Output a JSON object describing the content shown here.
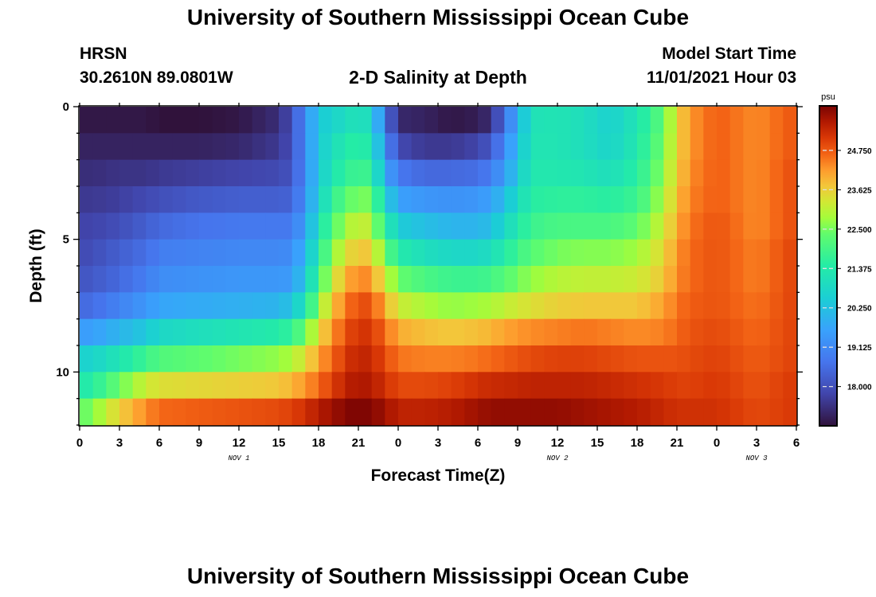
{
  "header": {
    "title": "University of Southern Mississippi Ocean Cube",
    "station": "HRSN",
    "coordinates": "30.2610N  89.0801W",
    "subtitle": "2-D Salinity at Depth",
    "model_start_label": "Model Start Time",
    "model_start_value": "11/01/2021 Hour 03"
  },
  "footer": {
    "title": "University of Southern Mississippi Ocean Cube"
  },
  "chart_data": {
    "type": "heatmap",
    "title": "2-D Salinity at Depth",
    "xlabel": "Forecast Time(Z)",
    "ylabel": "Depth (ft)",
    "xlim": [
      0,
      54
    ],
    "ylim": [
      0,
      12
    ],
    "x_tick_values": [
      0,
      3,
      6,
      9,
      12,
      15,
      18,
      21,
      24,
      27,
      30,
      33,
      36,
      39,
      42,
      45,
      48,
      51,
      54
    ],
    "x_tick_labels": [
      "0",
      "3",
      "6",
      "9",
      "12",
      "15",
      "18",
      "21",
      "0",
      "3",
      "6",
      "9",
      "12",
      "15",
      "18",
      "21",
      "0",
      "3",
      "6"
    ],
    "y_tick_values": [
      0,
      5,
      10
    ],
    "y_tick_labels": [
      "0",
      "5",
      "10"
    ],
    "date_labels": [
      {
        "label": "NOV 1",
        "hour": 12
      },
      {
        "label": "NOV 2",
        "hour": 36
      },
      {
        "label": "NOV 3",
        "hour": 51
      }
    ],
    "colorbar": {
      "unit": "psu",
      "min": 16.9,
      "max": 26.0,
      "tick_values": [
        18.0,
        19.125,
        20.25,
        21.375,
        22.5,
        23.625,
        24.75
      ],
      "tick_labels": [
        "18.000",
        "19.125",
        "20.250",
        "21.375",
        "22.500",
        "23.625",
        "24.750"
      ]
    },
    "depths": [
      0.5,
      1.5,
      2.5,
      3.5,
      4.5,
      5.5,
      6.5,
      7.5,
      8.5,
      9.5,
      10.5,
      11.5
    ],
    "hours": [
      0,
      1,
      3,
      5,
      6,
      9,
      12,
      15,
      16,
      17,
      18,
      19,
      20,
      21,
      22,
      23,
      24,
      26,
      28,
      30,
      31,
      32,
      34,
      36,
      38,
      40,
      42,
      44,
      45,
      46,
      48,
      51,
      54
    ],
    "salinity": [
      [
        17.0,
        17.0,
        17.0,
        17.0,
        16.9,
        16.9,
        17.0,
        17.4,
        18.0,
        19.2,
        20.4,
        20.7,
        20.9,
        21.2,
        20.8,
        18.8,
        17.3,
        17.2,
        17.0,
        17.1,
        17.4,
        18.6,
        21.1,
        21.2,
        21.0,
        20.6,
        21.2,
        22.3,
        23.5,
        24.2,
        24.7,
        24.3,
        24.8
      ],
      [
        17.2,
        17.2,
        17.2,
        17.2,
        17.2,
        17.2,
        17.3,
        17.6,
        18.0,
        19.2,
        20.4,
        21.0,
        21.3,
        21.6,
        21.2,
        19.3,
        17.9,
        17.6,
        17.6,
        17.8,
        18.2,
        19.1,
        21.2,
        21.2,
        21.0,
        20.7,
        21.3,
        22.5,
        23.5,
        24.2,
        24.7,
        24.3,
        24.8
      ],
      [
        17.4,
        17.4,
        17.5,
        17.5,
        17.6,
        17.7,
        17.8,
        17.9,
        18.1,
        19.2,
        20.4,
        21.2,
        21.6,
        21.9,
        21.7,
        19.8,
        18.8,
        18.5,
        18.5,
        18.6,
        18.9,
        19.5,
        21.3,
        21.3,
        21.2,
        21.0,
        21.5,
        22.7,
        23.6,
        24.3,
        24.7,
        24.3,
        24.9
      ],
      [
        17.6,
        17.6,
        17.7,
        17.9,
        18.0,
        18.2,
        18.3,
        18.3,
        18.4,
        19.3,
        20.6,
        21.6,
        22.2,
        22.6,
        22.4,
        20.7,
        19.6,
        19.4,
        19.3,
        19.4,
        19.6,
        20.2,
        21.5,
        21.6,
        21.6,
        21.5,
        21.8,
        22.9,
        23.8,
        24.4,
        24.7,
        24.3,
        24.9
      ],
      [
        17.8,
        17.8,
        18.0,
        18.3,
        18.5,
        18.7,
        18.8,
        18.8,
        18.8,
        19.6,
        21.0,
        22.1,
        22.8,
        23.2,
        23.0,
        21.6,
        20.5,
        20.2,
        20.0,
        20.0,
        20.2,
        20.8,
        21.8,
        22.0,
        22.0,
        22.0,
        22.3,
        23.2,
        24.0,
        24.5,
        24.8,
        24.3,
        24.9
      ],
      [
        17.9,
        18.0,
        18.3,
        18.6,
        18.9,
        19.0,
        19.1,
        19.1,
        19.2,
        20.0,
        21.4,
        22.6,
        23.3,
        23.8,
        23.6,
        22.4,
        21.4,
        21.0,
        20.8,
        20.8,
        21.0,
        21.4,
        22.2,
        22.5,
        22.6,
        22.6,
        22.8,
        23.5,
        24.2,
        24.6,
        24.8,
        24.4,
        25.0
      ],
      [
        18.1,
        18.2,
        18.5,
        18.9,
        19.2,
        19.3,
        19.4,
        19.4,
        19.5,
        20.4,
        21.9,
        23.1,
        23.9,
        24.4,
        24.2,
        23.2,
        22.4,
        22.0,
        21.8,
        21.8,
        21.9,
        22.2,
        22.7,
        23.0,
        23.1,
        23.1,
        23.2,
        23.7,
        24.3,
        24.6,
        24.8,
        24.4,
        25.0
      ],
      [
        18.5,
        18.6,
        19.0,
        19.4,
        19.7,
        19.8,
        19.9,
        20.0,
        20.3,
        21.2,
        22.6,
        23.7,
        24.4,
        24.9,
        24.8,
        24.0,
        23.2,
        22.9,
        22.7,
        22.8,
        22.9,
        23.1,
        23.4,
        23.6,
        23.7,
        23.7,
        23.7,
        24.1,
        24.5,
        24.7,
        24.8,
        24.5,
        25.0
      ],
      [
        19.5,
        19.6,
        20.0,
        20.4,
        20.8,
        21.0,
        21.2,
        21.4,
        21.7,
        22.4,
        23.4,
        24.2,
        24.8,
        25.2,
        25.1,
        24.6,
        24.0,
        23.8,
        23.7,
        23.8,
        23.9,
        24.1,
        24.3,
        24.4,
        24.5,
        24.4,
        24.3,
        24.4,
        24.6,
        24.8,
        24.9,
        24.6,
        25.0
      ],
      [
        20.6,
        20.7,
        21.2,
        21.8,
        22.1,
        22.3,
        22.5,
        22.7,
        22.9,
        23.4,
        24.1,
        24.6,
        25.1,
        25.4,
        25.3,
        24.9,
        24.5,
        24.4,
        24.4,
        24.5,
        24.6,
        24.7,
        24.9,
        25.0,
        25.0,
        24.9,
        24.8,
        24.8,
        24.8,
        24.9,
        25.0,
        24.7,
        25.0
      ],
      [
        21.3,
        21.5,
        22.4,
        23.2,
        23.4,
        23.5,
        23.6,
        23.7,
        23.9,
        24.2,
        24.6,
        25.0,
        25.4,
        25.6,
        25.5,
        25.2,
        24.9,
        24.9,
        25.0,
        25.2,
        25.3,
        25.3,
        25.4,
        25.4,
        25.4,
        25.3,
        25.2,
        25.1,
        25.0,
        25.0,
        25.1,
        24.8,
        25.1
      ],
      [
        22.3,
        22.6,
        23.6,
        24.3,
        24.6,
        24.7,
        24.8,
        24.9,
        25.0,
        25.2,
        25.5,
        25.7,
        25.9,
        26.0,
        25.9,
        25.7,
        25.4,
        25.4,
        25.5,
        25.7,
        25.8,
        25.8,
        25.8,
        25.8,
        25.7,
        25.6,
        25.5,
        25.3,
        25.2,
        25.2,
        25.2,
        24.9,
        25.1
      ]
    ]
  }
}
